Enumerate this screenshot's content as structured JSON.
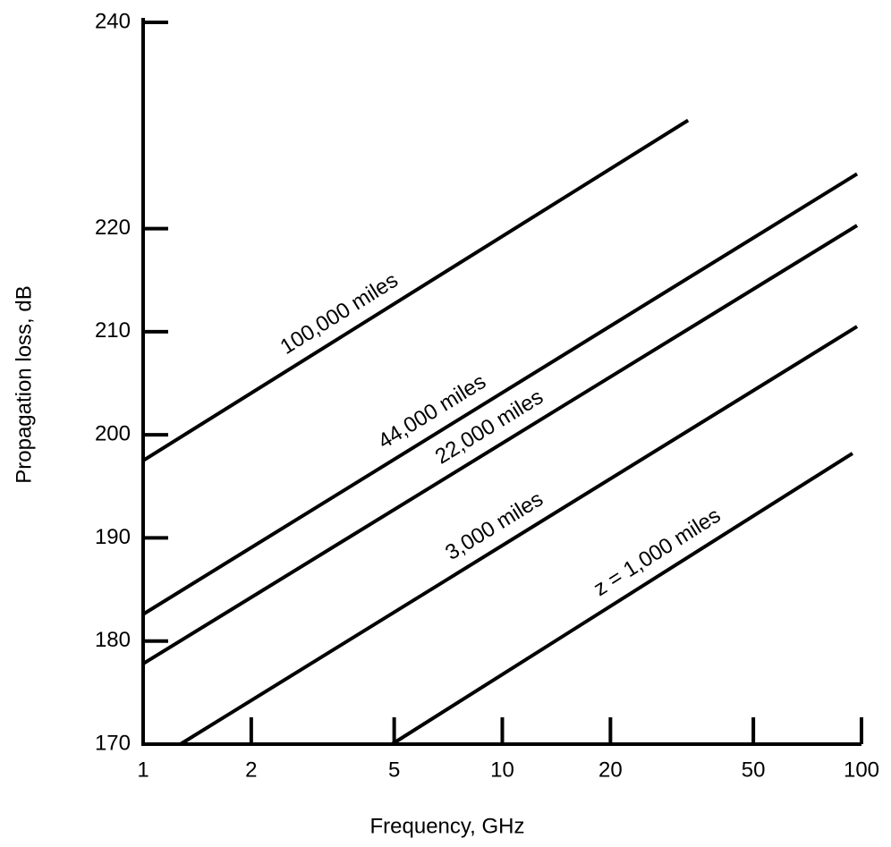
{
  "chart_data": {
    "type": "line",
    "x_label": "Frequency, GHz",
    "y_label": "Propagation loss, dB",
    "log_x": true,
    "xlim": [
      1,
      100
    ],
    "xticks": [
      1,
      2,
      5,
      10,
      20,
      50,
      100
    ],
    "ylim": [
      170,
      240
    ],
    "yticks": [
      170,
      180,
      190,
      200,
      210,
      220,
      240
    ],
    "series": [
      {
        "name": "100,000 miles",
        "color": "#000000",
        "x": [
          1,
          32.9
        ],
        "values": [
          197.5,
          230.5
        ]
      },
      {
        "name": "44,000 miles",
        "color": "#000000",
        "x": [
          1,
          97.2
        ],
        "values": [
          182.6,
          225.3
        ]
      },
      {
        "name": "22,000 miles",
        "color": "#000000",
        "x": [
          1,
          97.2
        ],
        "values": [
          177.8,
          220.3
        ]
      },
      {
        "name": "3,000 miles",
        "color": "#000000",
        "x": [
          1.27,
          97.2
        ],
        "values": [
          170,
          210.5
        ]
      },
      {
        "name": "z = 1,000 miles",
        "color": "#000000",
        "x": [
          4.93,
          94.4
        ],
        "values": [
          170,
          198.2
        ]
      }
    ]
  }
}
